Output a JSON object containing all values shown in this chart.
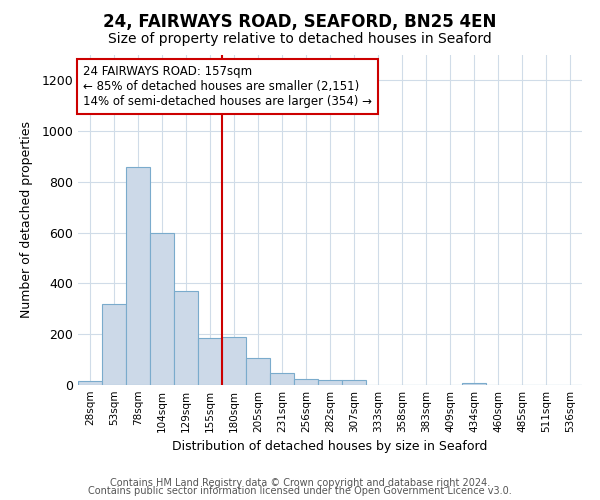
{
  "title_line1": "24, FAIRWAYS ROAD, SEAFORD, BN25 4EN",
  "title_line2": "Size of property relative to detached houses in Seaford",
  "xlabel": "Distribution of detached houses by size in Seaford",
  "ylabel": "Number of detached properties",
  "categories": [
    "28sqm",
    "53sqm",
    "78sqm",
    "104sqm",
    "129sqm",
    "155sqm",
    "180sqm",
    "205sqm",
    "231sqm",
    "256sqm",
    "282sqm",
    "307sqm",
    "333sqm",
    "358sqm",
    "383sqm",
    "409sqm",
    "434sqm",
    "460sqm",
    "485sqm",
    "511sqm",
    "536sqm"
  ],
  "values": [
    15,
    320,
    860,
    600,
    370,
    185,
    190,
    105,
    48,
    25,
    20,
    18,
    0,
    0,
    0,
    0,
    8,
    0,
    0,
    0,
    0
  ],
  "bar_color": "#ccd9e8",
  "bar_edge_color": "#7aabcc",
  "vline_x": 5.5,
  "vline_color": "#cc0000",
  "annotation_text": "24 FAIRWAYS ROAD: 157sqm\n← 85% of detached houses are smaller (2,151)\n14% of semi-detached houses are larger (354) →",
  "annotation_box_color": "white",
  "annotation_box_edge_color": "#cc0000",
  "ylim": [
    0,
    1300
  ],
  "yticks": [
    0,
    200,
    400,
    600,
    800,
    1000,
    1200
  ],
  "footer_text1": "Contains HM Land Registry data © Crown copyright and database right 2024.",
  "footer_text2": "Contains public sector information licensed under the Open Government Licence v3.0.",
  "background_color": "#ffffff",
  "plot_bg_color": "#ffffff",
  "grid_color": "#d0dce8",
  "title_fontsize": 12,
  "subtitle_fontsize": 10,
  "footer_fontsize": 7
}
